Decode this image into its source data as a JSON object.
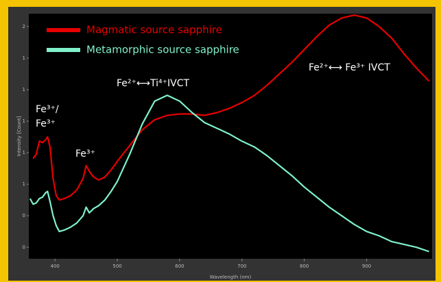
{
  "chart_data": {
    "type": "line",
    "xlabel": "Wavelength (nm)",
    "ylabel": "Intensity [Count]",
    "x": [
      360,
      365,
      370,
      375,
      380,
      385,
      388,
      392,
      397,
      402,
      407,
      415,
      425,
      435,
      445,
      450,
      455,
      462,
      470,
      480,
      490,
      500,
      520,
      540,
      560,
      580,
      600,
      620,
      640,
      660,
      680,
      700,
      720,
      740,
      760,
      780,
      800,
      820,
      840,
      860,
      880,
      900,
      920,
      940,
      960,
      980,
      1000
    ],
    "series": [
      {
        "name": "Magmatic source sapphire",
        "color": "#e80000",
        "values": [
          null,
          0.72,
          0.75,
          0.84,
          0.83,
          0.85,
          0.87,
          0.8,
          0.58,
          0.46,
          0.43,
          0.44,
          0.46,
          0.5,
          0.58,
          0.67,
          0.63,
          0.59,
          0.57,
          0.59,
          0.64,
          0.7,
          0.81,
          0.92,
          0.99,
          1.02,
          1.03,
          1.03,
          1.02,
          1.04,
          1.07,
          1.11,
          1.16,
          1.23,
          1.31,
          1.39,
          1.48,
          1.57,
          1.65,
          1.7,
          1.72,
          1.7,
          1.64,
          1.56,
          1.45,
          1.35,
          1.26
        ]
      },
      {
        "name": "Metamorphic source sapphire",
        "color": "#7ff2cc",
        "values": [
          0.44,
          0.4,
          0.41,
          0.44,
          0.45,
          0.48,
          0.49,
          0.42,
          0.32,
          0.25,
          0.21,
          0.22,
          0.24,
          0.27,
          0.32,
          0.38,
          0.34,
          0.37,
          0.39,
          0.43,
          0.49,
          0.56,
          0.75,
          0.96,
          1.12,
          1.16,
          1.12,
          1.04,
          0.97,
          0.93,
          0.89,
          0.84,
          0.8,
          0.74,
          0.67,
          0.6,
          0.52,
          0.45,
          0.38,
          0.32,
          0.26,
          0.21,
          0.18,
          0.14,
          0.12,
          0.1,
          0.07
        ]
      }
    ],
    "xlim": [
      358,
      1005
    ],
    "ylim": [
      0.02,
      1.73
    ],
    "xticks": [
      400,
      500,
      600,
      700,
      800,
      900
    ],
    "yticks": [
      {
        "value": 0.1,
        "label": "0"
      },
      {
        "value": 0.32,
        "label": "0"
      },
      {
        "value": 0.54,
        "label": "1"
      },
      {
        "value": 0.76,
        "label": "1"
      },
      {
        "value": 0.98,
        "label": "1"
      },
      {
        "value": 1.2,
        "label": "1"
      },
      {
        "value": 1.42,
        "label": "1"
      },
      {
        "value": 1.64,
        "label": "2"
      }
    ],
    "annotations": [
      "Fe³⁺/",
      "Fe³⁺",
      "Fe³⁺",
      "Fe²⁺⟷Ti⁴⁺IVCT",
      "Fe²⁺⟷ Fe³⁺ IVCT"
    ]
  }
}
